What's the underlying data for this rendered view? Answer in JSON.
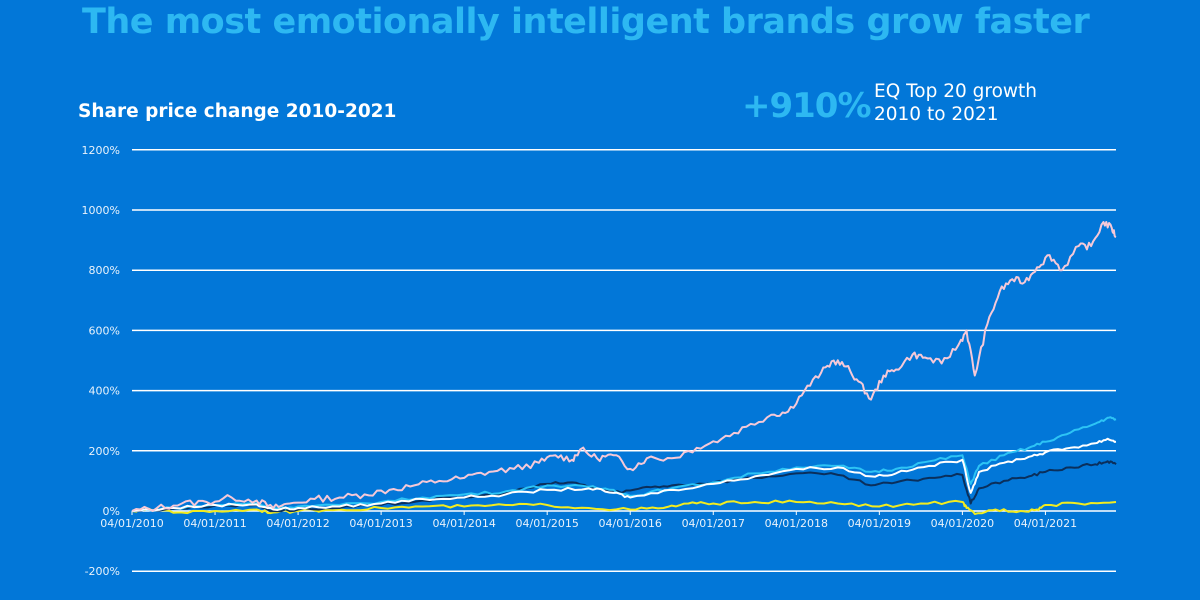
{
  "header": {
    "title": "The most emotionally intelligent brands grow faster",
    "subtitle": "Share price change 2010-2021",
    "stat_value": "+910%",
    "stat_label_line1": "EQ Top 20 growth",
    "stat_label_line2": "2010 to 2021"
  },
  "colors": {
    "background": "#0277D8",
    "title": "#2DB8F2",
    "gridline": "#FFFFFF",
    "tick_text": "#E8F2FB"
  },
  "chart_data": {
    "type": "line",
    "title": "Share price change 2010-2021",
    "xlabel": "",
    "ylabel": "",
    "x_ticks": [
      "04/01/2010",
      "04/01/2011",
      "04/01/2012",
      "04/01/2013",
      "04/01/2014",
      "04/01/2015",
      "04/01/2016",
      "04/01/2017",
      "04/01/2018",
      "04/01/2019",
      "04/01/2020",
      "04/01/2021"
    ],
    "x_range": [
      2010.0,
      2021.85
    ],
    "y_ticks": [
      "1200%",
      "1000%",
      "800%",
      "600%",
      "400%",
      "200%",
      "0%",
      "-200%"
    ],
    "y_tick_values": [
      1200,
      1000,
      800,
      600,
      400,
      200,
      0,
      -200
    ],
    "ylim": [
      -200,
      1200
    ],
    "grid": true,
    "legend": "none",
    "annotation": "+910% EQ Top 20 growth 2010 to 2021",
    "series": [
      {
        "name": "EQ Top 20",
        "color": "#F6C9D8",
        "x": [
          2010.0,
          2010.3,
          2010.6,
          2010.9,
          2011.2,
          2011.5,
          2011.7,
          2011.9,
          2012.2,
          2012.5,
          2012.8,
          2013.1,
          2013.4,
          2013.7,
          2014.0,
          2014.3,
          2014.6,
          2014.9,
          2015.1,
          2015.3,
          2015.4,
          2015.6,
          2015.8,
          2016.0,
          2016.2,
          2016.5,
          2016.8,
          2017.1,
          2017.4,
          2017.7,
          2017.9,
          2018.1,
          2018.3,
          2018.45,
          2018.6,
          2018.75,
          2018.9,
          2019.05,
          2019.2,
          2019.4,
          2019.55,
          2019.75,
          2019.95,
          2020.05,
          2020.15,
          2020.3,
          2020.45,
          2020.6,
          2020.75,
          2020.9,
          2021.05,
          2021.2,
          2021.4,
          2021.55,
          2021.7,
          2021.8,
          2021.85
        ],
        "values": [
          0,
          10,
          25,
          30,
          45,
          35,
          10,
          25,
          40,
          45,
          55,
          70,
          85,
          100,
          110,
          130,
          140,
          160,
          185,
          170,
          205,
          175,
          185,
          140,
          175,
          175,
          210,
          240,
          280,
          320,
          330,
          400,
          460,
          500,
          480,
          430,
          370,
          450,
          470,
          520,
          510,
          490,
          550,
          600,
          450,
          620,
          730,
          770,
          760,
          810,
          850,
          800,
          880,
          880,
          960,
          940,
          910
        ]
      },
      {
        "name": "Light blue series",
        "color": "#2DC4F5",
        "x": [
          2010.0,
          2010.5,
          2011.0,
          2011.5,
          2011.7,
          2012.0,
          2012.5,
          2013.0,
          2013.5,
          2014.0,
          2014.5,
          2015.0,
          2015.5,
          2015.8,
          2016.0,
          2016.5,
          2017.0,
          2017.5,
          2018.0,
          2018.5,
          2018.9,
          2019.2,
          2019.6,
          2020.0,
          2020.1,
          2020.2,
          2020.5,
          2020.8,
          2021.0,
          2021.3,
          2021.6,
          2021.75,
          2021.85
        ],
        "values": [
          0,
          10,
          20,
          25,
          10,
          15,
          20,
          30,
          45,
          55,
          65,
          85,
          80,
          70,
          50,
          75,
          95,
          125,
          145,
          150,
          130,
          140,
          165,
          185,
          90,
          150,
          185,
          210,
          230,
          260,
          290,
          310,
          305
        ]
      },
      {
        "name": "White series",
        "color": "#FFFFFF",
        "x": [
          2010.0,
          2010.5,
          2011.0,
          2011.5,
          2011.7,
          2012.0,
          2012.5,
          2013.0,
          2013.5,
          2014.0,
          2014.5,
          2015.0,
          2015.5,
          2015.8,
          2016.0,
          2016.5,
          2017.0,
          2017.5,
          2018.0,
          2018.5,
          2018.9,
          2019.2,
          2019.6,
          2020.0,
          2020.1,
          2020.2,
          2020.5,
          2020.8,
          2021.0,
          2021.3,
          2021.6,
          2021.75,
          2021.85
        ],
        "values": [
          0,
          10,
          20,
          22,
          5,
          10,
          15,
          25,
          40,
          45,
          55,
          70,
          75,
          60,
          45,
          70,
          90,
          115,
          140,
          145,
          115,
          125,
          150,
          170,
          60,
          130,
          160,
          180,
          195,
          210,
          225,
          240,
          230
        ]
      },
      {
        "name": "Dark navy series",
        "color": "#0A2F5C",
        "x": [
          2010.0,
          2010.5,
          2011.0,
          2011.5,
          2011.7,
          2012.0,
          2012.5,
          2013.0,
          2013.5,
          2014.0,
          2014.5,
          2015.0,
          2015.3,
          2015.6,
          2015.9,
          2016.2,
          2016.5,
          2017.0,
          2017.5,
          2018.0,
          2018.5,
          2018.9,
          2019.2,
          2019.6,
          2020.0,
          2020.1,
          2020.2,
          2020.5,
          2020.8,
          2021.0,
          2021.3,
          2021.6,
          2021.75,
          2021.85
        ],
        "values": [
          0,
          8,
          18,
          20,
          0,
          5,
          10,
          20,
          35,
          45,
          60,
          90,
          95,
          75,
          60,
          80,
          85,
          95,
          110,
          125,
          120,
          85,
          95,
          110,
          120,
          25,
          75,
          100,
          115,
          130,
          145,
          155,
          165,
          155
        ]
      },
      {
        "name": "Yellow series",
        "color": "#F2EC1F",
        "x": [
          2010.0,
          2010.3,
          2010.6,
          2011.0,
          2011.5,
          2011.7,
          2012.0,
          2012.5,
          2013.0,
          2013.5,
          2014.0,
          2014.5,
          2015.0,
          2015.5,
          2016.0,
          2016.4,
          2016.7,
          2017.0,
          2017.5,
          2018.0,
          2018.5,
          2019.0,
          2019.5,
          2020.0,
          2020.05,
          2020.15,
          2020.4,
          2020.7,
          2020.9,
          2021.0,
          2021.4,
          2021.85
        ],
        "values": [
          0,
          5,
          -5,
          0,
          5,
          -5,
          0,
          5,
          10,
          15,
          15,
          20,
          20,
          10,
          5,
          10,
          25,
          25,
          30,
          30,
          25,
          15,
          25,
          30,
          10,
          -10,
          5,
          0,
          5,
          20,
          25,
          30
        ]
      }
    ]
  }
}
